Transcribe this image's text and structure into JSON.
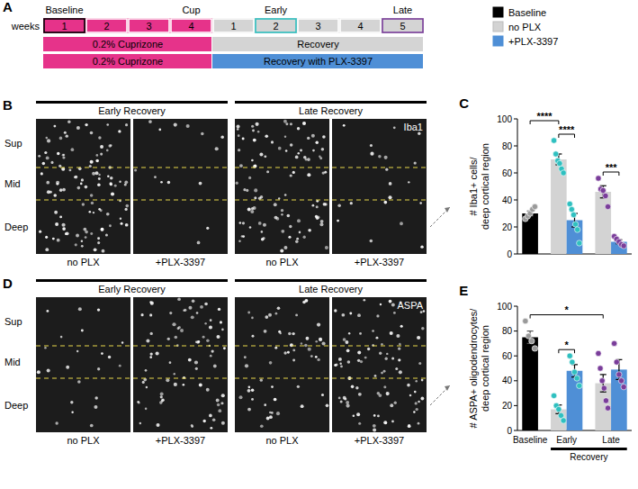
{
  "timeline": {
    "letter": "A",
    "weeks_label": "weeks",
    "weeks": [
      {
        "label": "1",
        "color": "#e6338a",
        "border": "#000000"
      },
      {
        "label": "2",
        "color": "#e6338a",
        "border": "#ffffff"
      },
      {
        "label": "3",
        "color": "#e6338a",
        "border": "#ffffff"
      },
      {
        "label": "4",
        "color": "#e6338a",
        "border": "#ffffff"
      },
      {
        "label": "1",
        "color": "#d4d4d4",
        "border": "#ffffff"
      },
      {
        "label": "2",
        "color": "#d4d4d4",
        "border": "#2fc0c0"
      },
      {
        "label": "3",
        "color": "#d4d4d4",
        "border": "#ffffff"
      },
      {
        "label": "4",
        "color": "#d4d4d4",
        "border": "#ffffff"
      },
      {
        "label": "5",
        "color": "#d4d4d4",
        "border": "#7a3d9a"
      }
    ],
    "top_labels": [
      {
        "text": "Baseline",
        "week": 0
      },
      {
        "text": "Cup",
        "week": 3
      },
      {
        "text": "Early",
        "week": 5
      },
      {
        "text": "Late",
        "week": 8
      }
    ],
    "bars": [
      [
        {
          "text": "0.2% Cuprizone",
          "from": 0,
          "to": 4,
          "color": "#e6338a"
        },
        {
          "text": "Recovery",
          "from": 4,
          "to": 9,
          "color": "#d4d4d4"
        }
      ],
      [
        {
          "text": "0.2% Cuprizone",
          "from": 0,
          "to": 4,
          "color": "#e6338a"
        },
        {
          "text": "Recovery with PLX-3397",
          "from": 4,
          "to": 9,
          "color": "#4f8fd6"
        }
      ]
    ]
  },
  "micrographs": [
    {
      "letter": "B",
      "stain": "Iba1",
      "headers": [
        "Early Recovery",
        "Late Recovery"
      ],
      "layers": [
        "Sup",
        "Mid",
        "Deep"
      ],
      "columns": [
        "no PLX",
        "+PLX-3397",
        "no PLX",
        "+PLX-3397"
      ]
    },
    {
      "letter": "D",
      "stain": "ASPA",
      "headers": [
        "Early Recovery",
        "Late Recovery"
      ],
      "layers": [
        "Sup",
        "Mid",
        "Deep"
      ],
      "columns": [
        "no PLX",
        "+PLX-3397",
        "no PLX",
        "+PLX-3397"
      ]
    }
  ],
  "chart_letters": [
    "C",
    "E"
  ],
  "chart_data": [
    {
      "type": "bar",
      "ylabel": "# Iba1+ cells/ deep cortical region",
      "categories": [
        null,
        null,
        null
      ],
      "ylim": [
        0,
        100
      ],
      "yticks": [
        0,
        20,
        40,
        60,
        80,
        100
      ],
      "tick_labels": "y",
      "legend": "top-right",
      "colors": [
        "#9a9a9a",
        "#2fc0c0",
        "#7a3d9a"
      ],
      "series": [
        {
          "name": "Baseline",
          "color": "#000000",
          "values": [
            30,
            null,
            null
          ],
          "errors": [
            1.8,
            null,
            null
          ],
          "points": [
            [
              26,
              28,
              30,
              33,
              35
            ],
            null,
            null
          ]
        },
        {
          "name": "no PLX",
          "color": "#d3d3d3",
          "values": [
            null,
            70,
            46
          ],
          "errors": [
            null,
            4,
            4.5
          ],
          "points": [
            null,
            [
              84,
              74,
              69,
              67,
              63,
              60
            ],
            [
              56,
              48,
              47,
              43,
              35
            ]
          ]
        },
        {
          "name": "+PLX-3397",
          "color": "#4f8fd6",
          "values": [
            null,
            25,
            9
          ],
          "errors": [
            null,
            5,
            1.5
          ],
          "points": [
            null,
            [
              37,
              33,
              29,
              22,
              18,
              8
            ],
            [
              13,
              11,
              9,
              7,
              6
            ]
          ]
        }
      ],
      "annotations": [
        {
          "text": "****",
          "from": [
            0,
            0
          ],
          "to": [
            1,
            1
          ]
        },
        {
          "text": "****",
          "from": [
            1,
            1
          ],
          "to": [
            2,
            1
          ]
        },
        {
          "text": "***",
          "from": [
            1,
            2
          ],
          "to": [
            2,
            2
          ]
        }
      ]
    },
    {
      "type": "bar",
      "ylabel": "# ASPA+ oligodendrocytes/ deep cortical region",
      "categories": [
        "Baseline",
        "Early",
        "Late"
      ],
      "ylim": [
        0,
        100
      ],
      "yticks": [
        0,
        20,
        40,
        60,
        80,
        100
      ],
      "colors": [
        "#9a9a9a",
        "#2fc0c0",
        "#7a3d9a"
      ],
      "series": [
        {
          "name": "Baseline",
          "color": "#000000",
          "values": [
            75,
            null,
            null
          ],
          "errors": [
            5,
            null,
            null
          ],
          "points": [
            [
              88,
              76,
              72,
              66
            ],
            null,
            null
          ]
        },
        {
          "name": "no PLX",
          "color": "#d3d3d3",
          "values": [
            null,
            17,
            38
          ],
          "errors": [
            null,
            3.5,
            7
          ],
          "points": [
            null,
            [
              28,
              20,
              17,
              12,
              8
            ],
            [
              62,
              50,
              40,
              34,
              24,
              18
            ]
          ]
        },
        {
          "name": "+PLX-3397",
          "color": "#4f8fd6",
          "values": [
            null,
            48,
            49
          ],
          "errors": [
            null,
            5,
            8
          ],
          "points": [
            null,
            [
              60,
              55,
              47,
              42,
              36
            ],
            [
              70,
              55,
              45,
              40,
              35
            ]
          ]
        }
      ],
      "annotations": [
        {
          "text": "*",
          "from": [
            0,
            0
          ],
          "to": [
            1,
            2
          ]
        },
        {
          "text": "*",
          "from": [
            1,
            1
          ],
          "to": [
            2,
            1
          ]
        }
      ],
      "span_label": {
        "text": "Recovery",
        "categories": [
          1,
          2
        ]
      }
    }
  ]
}
